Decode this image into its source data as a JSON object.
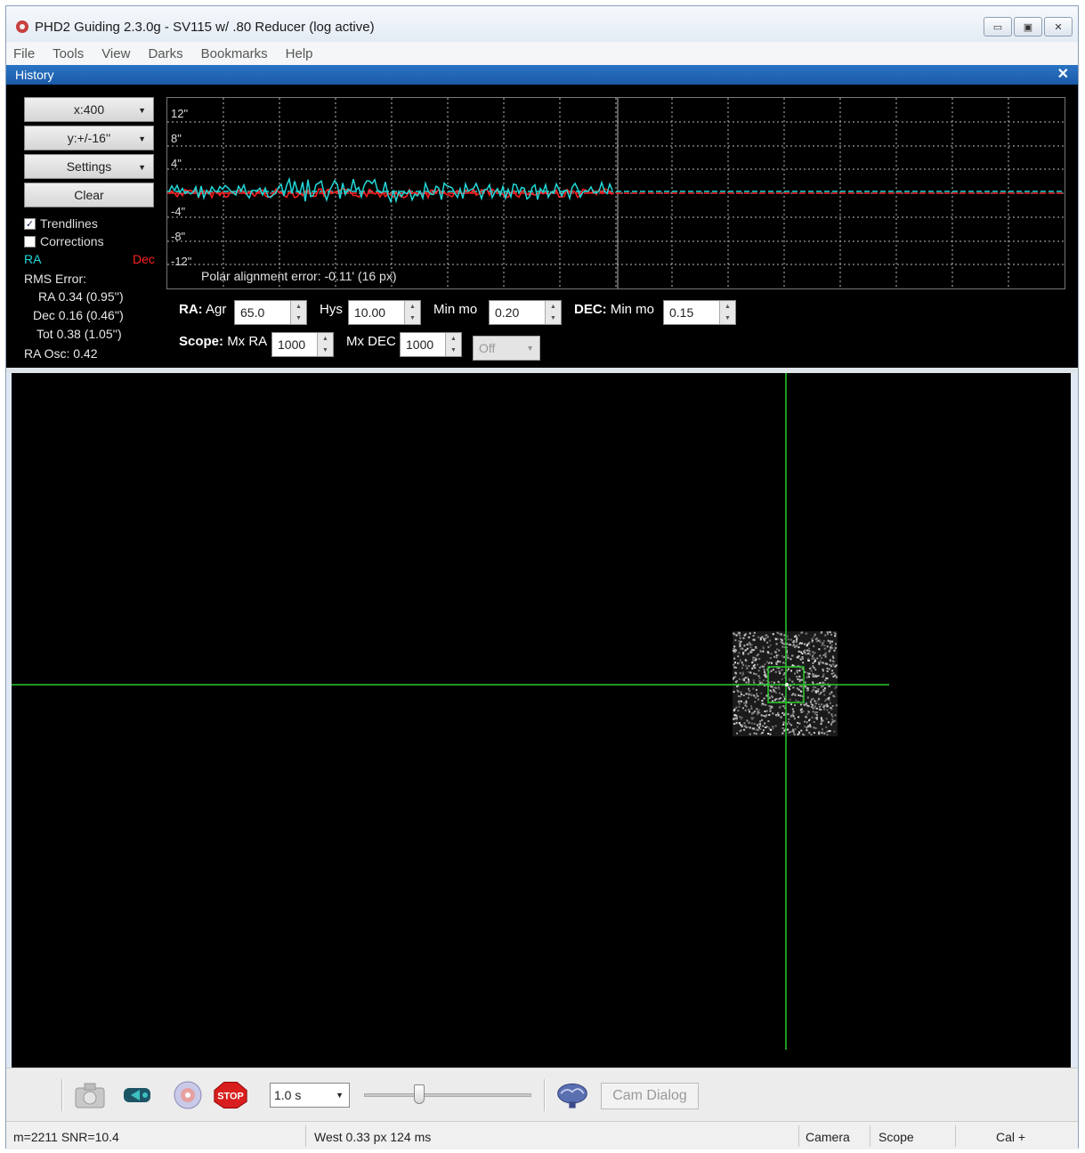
{
  "window": {
    "title": "PHD2 Guiding 2.3.0g - SV115 w/ .80 Reducer (log active)"
  },
  "menu": [
    "File",
    "Tools",
    "View",
    "Darks",
    "Bookmarks",
    "Help"
  ],
  "history": {
    "header": "History",
    "x_scale": "x:400",
    "y_scale": "y:+/-16''",
    "settings_label": "Settings",
    "clear_label": "Clear",
    "trendlines_label": "Trendlines",
    "trendlines_checked": true,
    "corrections_label": "Corrections",
    "corrections_checked": false,
    "ra_legend": "RA",
    "dec_legend": "Dec",
    "rms_title": "RMS Error:",
    "rms_ra": "RA 0.34 (0.95'')",
    "rms_dec": "Dec 0.16 (0.46'')",
    "rms_tot": "Tot 0.38 (1.05'')",
    "ra_osc": "RA Osc: 0.42",
    "polar_alignment": "Polar alignment error: -0.11' (16 px)",
    "y_ticks": [
      "12\"",
      "8\"",
      "4\"",
      "-4\"",
      "-8\"",
      "-12\""
    ],
    "colors": {
      "ra": "#22d8d8",
      "dec": "#ff2020",
      "grid": "#bbbbbb"
    }
  },
  "params": {
    "ra_label": "RA:",
    "ra_agr_label": "Agr",
    "ra_agr": "65.0",
    "hys_label": "Hys",
    "hys": "10.00",
    "min_mo_label": "Min mo",
    "ra_min_mo": "0.20",
    "dec_label": "DEC:",
    "dec_min_mo_label": "Min mo",
    "dec_min_mo": "0.15",
    "scope_label": "Scope:",
    "mx_ra_label": "Mx RA",
    "mx_ra": "1000",
    "mx_dec_label": "Mx DEC",
    "mx_dec": "1000",
    "dec_mode": "Off"
  },
  "toolbar": {
    "exposure": "1.0 s",
    "stop_label": "STOP",
    "cam_dialog_label": "Cam Dialog"
  },
  "status": {
    "star_info": "m=2211 SNR=10.4",
    "guide_info": "West  0.33 px 124 ms",
    "camera": "Camera",
    "scope": "Scope",
    "cal": "Cal +"
  }
}
